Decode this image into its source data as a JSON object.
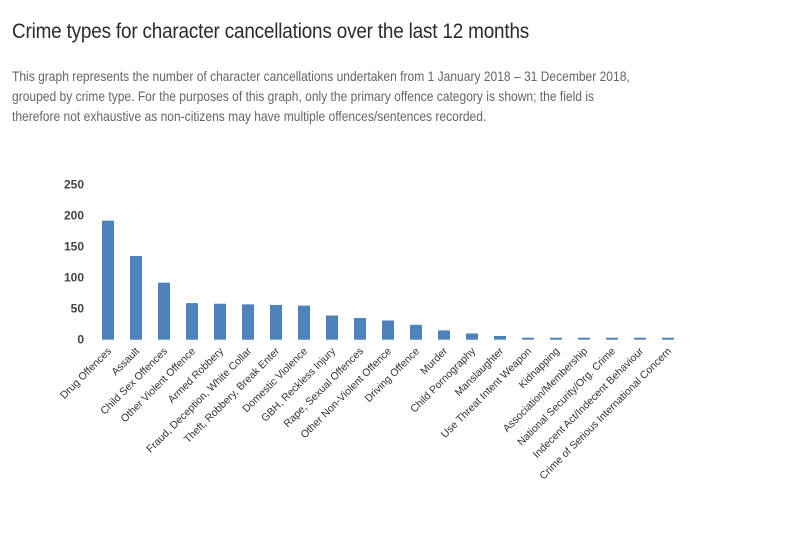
{
  "header": {
    "title": "Crime types for character cancellations over the last 12 months",
    "description_lines": [
      "This graph represents the number of character cancellations undertaken from 1 January 2018 – 31 December 2018,",
      "grouped by crime type. For the purposes of this graph, only the primary offence category is shown; the field is",
      "therefore not exhaustive as non-citizens may have multiple offences/sentences recorded."
    ]
  },
  "chart_data": {
    "type": "bar",
    "title": "",
    "xlabel": "",
    "ylabel": "",
    "ylim": [
      0,
      250
    ],
    "yticks": [
      "0",
      "50",
      "100",
      "150",
      "200",
      "250"
    ],
    "grid": false,
    "bar_color": "#4f81bd",
    "categories": [
      "Drug Offences",
      "Assault",
      "Child Sex Offences",
      "Other Violent Offence",
      "Armed Robbery",
      "Fraud, Deception, White Collar",
      "Theft, Robbery, Break Enter",
      "Domestic Violence",
      "GBH, Reckless Injury",
      "Rape, Sexual Offences",
      "Other Non-Violent Offence",
      "Driving Offence",
      "Murder",
      "Child Pornography",
      "Manslaughter",
      "Use Threat Intent Weapon",
      "Kidnapping",
      "Association/Membership",
      "National Security/Org. Crime",
      "Indecent Act/Indecent Behaviour",
      "Crime of Serious International Concern"
    ],
    "values": [
      192,
      135,
      92,
      59,
      58,
      57,
      56,
      55,
      39,
      35,
      31,
      24,
      15,
      10,
      6,
      2,
      2,
      1,
      2,
      2,
      2
    ]
  }
}
